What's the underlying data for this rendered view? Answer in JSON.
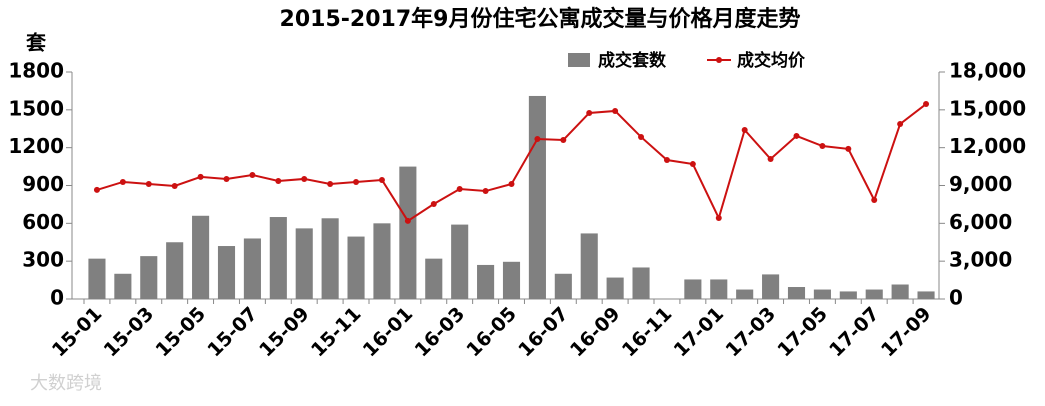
{
  "chart_data": {
    "type": "bar+line",
    "title": "2015-2017年9月份住宅公寓成交量与价格月度走势",
    "y_unit": "套",
    "watermark": "大数跨境",
    "categories": [
      "15-01",
      null,
      "15-03",
      null,
      "15-05",
      null,
      "15-07",
      null,
      "15-09",
      null,
      "15-11",
      null,
      "16-01",
      null,
      "16-03",
      null,
      "16-05",
      null,
      "16-07",
      null,
      "16-09",
      null,
      "16-11",
      null,
      "17-01",
      null,
      "17-03",
      null,
      "17-05",
      null,
      "17-07",
      null,
      "17-09"
    ],
    "series": [
      {
        "name": "成交套数",
        "type": "bar",
        "color": "#808080",
        "values": [
          320,
          200,
          340,
          450,
          660,
          420,
          480,
          650,
          560,
          640,
          495,
          600,
          1050,
          320,
          590,
          270,
          295,
          1610,
          200,
          520,
          170,
          250,
          null,
          155,
          155,
          75,
          195,
          95,
          75,
          60,
          75,
          115,
          60
        ]
      },
      {
        "name": "成交均价",
        "type": "line",
        "axis": "y2",
        "color": "#cc1111",
        "values": [
          8650,
          9280,
          9120,
          8960,
          9680,
          9520,
          9830,
          9360,
          9520,
          9120,
          9280,
          9440,
          6190,
          7530,
          8720,
          8560,
          9120,
          12690,
          12610,
          14750,
          14910,
          12850,
          11020,
          10700,
          6420,
          13400,
          11100,
          12930,
          12130,
          11900,
          7850,
          13880,
          15460
        ]
      }
    ],
    "ylim": [
      0,
      1800
    ],
    "yticks": [
      0,
      300,
      600,
      900,
      1200,
      1500,
      1800
    ],
    "y2lim": [
      0,
      18000
    ],
    "y2ticks": [
      0,
      {
        "value": 3000,
        "label": "3,000"
      },
      {
        "value": 6000,
        "label": "6,000"
      },
      {
        "value": 9000,
        "label": "9,000"
      },
      {
        "value": 12000,
        "label": "12,000"
      },
      {
        "value": 15000,
        "label": "15,000"
      },
      {
        "value": 18000,
        "label": "18,000"
      }
    ],
    "grid": false,
    "legend": "top"
  }
}
